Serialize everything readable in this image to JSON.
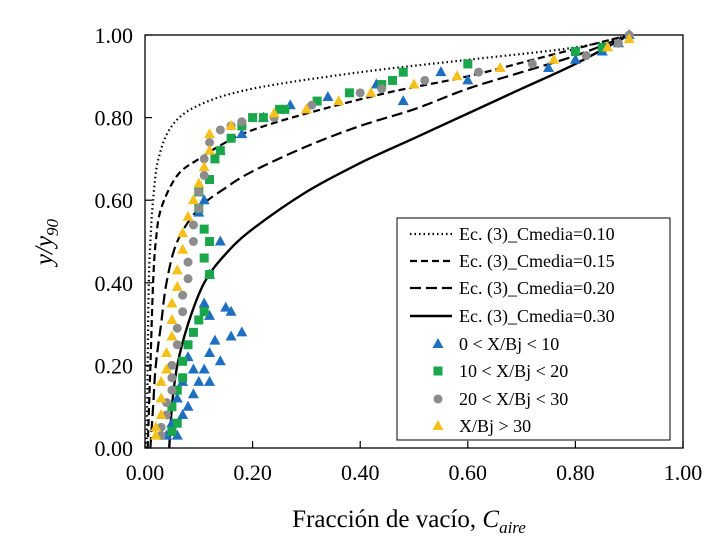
{
  "chart_data": {
    "type": "scatter",
    "xlabel": "Fracción de vacío,",
    "xlabel_var": "C",
    "xlabel_sub": "aire",
    "ylabel_var1": "y/y",
    "ylabel_sub": "90",
    "xlim": [
      0,
      1
    ],
    "ylim": [
      0,
      1
    ],
    "xticks": [
      "0.00",
      "0.20",
      "0.40",
      "0.60",
      "0.80",
      "1.00"
    ],
    "yticks": [
      "0.00",
      "0.20",
      "0.40",
      "0.60",
      "0.80",
      "1.00"
    ],
    "grid": false,
    "legend_position": "bottom-right",
    "curves": [
      {
        "name": "Ec. (3)_Cmedia=0.10",
        "style": "dotted",
        "points": [
          [
            0.003,
            0.0
          ],
          [
            0.005,
            0.2
          ],
          [
            0.007,
            0.4
          ],
          [
            0.01,
            0.5
          ],
          [
            0.015,
            0.6
          ],
          [
            0.025,
            0.7
          ],
          [
            0.05,
            0.78
          ],
          [
            0.1,
            0.83
          ],
          [
            0.2,
            0.87
          ],
          [
            0.4,
            0.91
          ],
          [
            0.6,
            0.94
          ],
          [
            0.8,
            0.97
          ],
          [
            0.9,
            1.0
          ]
        ]
      },
      {
        "name": "Ec. (3)_Cmedia=0.15",
        "style": "short-dash",
        "points": [
          [
            0.005,
            0.0
          ],
          [
            0.01,
            0.2
          ],
          [
            0.015,
            0.4
          ],
          [
            0.02,
            0.5
          ],
          [
            0.03,
            0.58
          ],
          [
            0.06,
            0.66
          ],
          [
            0.1,
            0.7
          ],
          [
            0.15,
            0.74
          ],
          [
            0.2,
            0.77
          ],
          [
            0.3,
            0.81
          ],
          [
            0.45,
            0.86
          ],
          [
            0.6,
            0.9
          ],
          [
            0.75,
            0.95
          ],
          [
            0.9,
            1.0
          ]
        ]
      },
      {
        "name": "Ec. (3)_Cmedia=0.20",
        "style": "long-dash",
        "points": [
          [
            0.01,
            0.0
          ],
          [
            0.015,
            0.1
          ],
          [
            0.02,
            0.2
          ],
          [
            0.03,
            0.3
          ],
          [
            0.04,
            0.4
          ],
          [
            0.06,
            0.5
          ],
          [
            0.1,
            0.58
          ],
          [
            0.15,
            0.63
          ],
          [
            0.2,
            0.67
          ],
          [
            0.3,
            0.73
          ],
          [
            0.4,
            0.78
          ],
          [
            0.5,
            0.82
          ],
          [
            0.6,
            0.87
          ],
          [
            0.7,
            0.91
          ],
          [
            0.8,
            0.95
          ],
          [
            0.9,
            1.0
          ]
        ]
      },
      {
        "name": "Ec. (3)_Cmedia=0.30",
        "style": "solid",
        "points": [
          [
            0.045,
            0.0
          ],
          [
            0.05,
            0.1
          ],
          [
            0.06,
            0.2
          ],
          [
            0.08,
            0.3
          ],
          [
            0.11,
            0.4
          ],
          [
            0.15,
            0.47
          ],
          [
            0.2,
            0.53
          ],
          [
            0.3,
            0.62
          ],
          [
            0.4,
            0.69
          ],
          [
            0.5,
            0.75
          ],
          [
            0.6,
            0.81
          ],
          [
            0.7,
            0.87
          ],
          [
            0.8,
            0.93
          ],
          [
            0.9,
            1.0
          ]
        ]
      }
    ],
    "series": [
      {
        "name": "0 < X/Bj < 10",
        "marker": "triangle",
        "color": "#1f6fc0",
        "points": [
          [
            0.04,
            0.03
          ],
          [
            0.06,
            0.03
          ],
          [
            0.05,
            0.06
          ],
          [
            0.07,
            0.08
          ],
          [
            0.08,
            0.1
          ],
          [
            0.06,
            0.12
          ],
          [
            0.09,
            0.13
          ],
          [
            0.07,
            0.16
          ],
          [
            0.1,
            0.16
          ],
          [
            0.12,
            0.16
          ],
          [
            0.09,
            0.19
          ],
          [
            0.11,
            0.19
          ],
          [
            0.14,
            0.21
          ],
          [
            0.08,
            0.22
          ],
          [
            0.12,
            0.23
          ],
          [
            0.13,
            0.26
          ],
          [
            0.16,
            0.27
          ],
          [
            0.18,
            0.28
          ],
          [
            0.12,
            0.32
          ],
          [
            0.15,
            0.34
          ],
          [
            0.16,
            0.33
          ],
          [
            0.11,
            0.35
          ],
          [
            0.12,
            0.42
          ],
          [
            0.14,
            0.5
          ],
          [
            0.1,
            0.57
          ],
          [
            0.11,
            0.6
          ],
          [
            0.14,
            0.72
          ],
          [
            0.18,
            0.76
          ],
          [
            0.22,
            0.8
          ],
          [
            0.27,
            0.83
          ],
          [
            0.34,
            0.85
          ],
          [
            0.43,
            0.88
          ],
          [
            0.48,
            0.84
          ],
          [
            0.55,
            0.91
          ],
          [
            0.6,
            0.89
          ],
          [
            0.75,
            0.92
          ],
          [
            0.8,
            0.94
          ],
          [
            0.85,
            0.96
          ],
          [
            0.88,
            0.98
          ],
          [
            0.9,
            1.0
          ]
        ]
      },
      {
        "name": "10 < X/Bj < 20",
        "marker": "square",
        "color": "#1aa64a",
        "points": [
          [
            0.05,
            0.04
          ],
          [
            0.06,
            0.06
          ],
          [
            0.05,
            0.1
          ],
          [
            0.06,
            0.14
          ],
          [
            0.07,
            0.17
          ],
          [
            0.07,
            0.21
          ],
          [
            0.08,
            0.25
          ],
          [
            0.09,
            0.28
          ],
          [
            0.1,
            0.31
          ],
          [
            0.11,
            0.33
          ],
          [
            0.12,
            0.42
          ],
          [
            0.11,
            0.46
          ],
          [
            0.12,
            0.5
          ],
          [
            0.11,
            0.53
          ],
          [
            0.1,
            0.58
          ],
          [
            0.1,
            0.62
          ],
          [
            0.12,
            0.65
          ],
          [
            0.13,
            0.7
          ],
          [
            0.14,
            0.72
          ],
          [
            0.16,
            0.75
          ],
          [
            0.18,
            0.78
          ],
          [
            0.2,
            0.8
          ],
          [
            0.22,
            0.8
          ],
          [
            0.25,
            0.82
          ],
          [
            0.26,
            0.82
          ],
          [
            0.32,
            0.84
          ],
          [
            0.38,
            0.86
          ],
          [
            0.44,
            0.88
          ],
          [
            0.46,
            0.89
          ],
          [
            0.48,
            0.91
          ],
          [
            0.6,
            0.93
          ],
          [
            0.8,
            0.96
          ],
          [
            0.85,
            0.97
          ]
        ]
      },
      {
        "name": "20 < X/Bj < 30",
        "marker": "circle",
        "color": "#8c8c8c",
        "points": [
          [
            0.03,
            0.03
          ],
          [
            0.03,
            0.05
          ],
          [
            0.04,
            0.08
          ],
          [
            0.04,
            0.11
          ],
          [
            0.05,
            0.14
          ],
          [
            0.05,
            0.17
          ],
          [
            0.05,
            0.2
          ],
          [
            0.06,
            0.25
          ],
          [
            0.06,
            0.29
          ],
          [
            0.07,
            0.33
          ],
          [
            0.07,
            0.37
          ],
          [
            0.08,
            0.41
          ],
          [
            0.08,
            0.45
          ],
          [
            0.09,
            0.5
          ],
          [
            0.09,
            0.54
          ],
          [
            0.1,
            0.58
          ],
          [
            0.1,
            0.62
          ],
          [
            0.11,
            0.66
          ],
          [
            0.11,
            0.7
          ],
          [
            0.12,
            0.74
          ],
          [
            0.14,
            0.77
          ],
          [
            0.16,
            0.78
          ],
          [
            0.18,
            0.79
          ],
          [
            0.24,
            0.8
          ],
          [
            0.31,
            0.83
          ],
          [
            0.4,
            0.86
          ],
          [
            0.44,
            0.87
          ],
          [
            0.52,
            0.89
          ],
          [
            0.62,
            0.91
          ],
          [
            0.72,
            0.93
          ],
          [
            0.82,
            0.95
          ],
          [
            0.88,
            0.98
          ],
          [
            0.9,
            1.0
          ]
        ]
      },
      {
        "name": "X/Bj > 30",
        "marker": "triangle",
        "color": "#f6c01c",
        "points": [
          [
            0.02,
            0.03
          ],
          [
            0.02,
            0.05
          ],
          [
            0.03,
            0.08
          ],
          [
            0.03,
            0.12
          ],
          [
            0.03,
            0.16
          ],
          [
            0.04,
            0.19
          ],
          [
            0.04,
            0.23
          ],
          [
            0.05,
            0.27
          ],
          [
            0.05,
            0.31
          ],
          [
            0.05,
            0.35
          ],
          [
            0.06,
            0.39
          ],
          [
            0.06,
            0.43
          ],
          [
            0.07,
            0.48
          ],
          [
            0.07,
            0.52
          ],
          [
            0.08,
            0.56
          ],
          [
            0.09,
            0.6
          ],
          [
            0.1,
            0.64
          ],
          [
            0.11,
            0.68
          ],
          [
            0.12,
            0.72
          ],
          [
            0.12,
            0.76
          ],
          [
            0.16,
            0.78
          ],
          [
            0.24,
            0.81
          ],
          [
            0.3,
            0.82
          ],
          [
            0.36,
            0.84
          ],
          [
            0.42,
            0.86
          ],
          [
            0.5,
            0.88
          ],
          [
            0.58,
            0.9
          ],
          [
            0.66,
            0.92
          ],
          [
            0.76,
            0.94
          ],
          [
            0.86,
            0.97
          ],
          [
            0.9,
            0.99
          ]
        ]
      }
    ]
  }
}
